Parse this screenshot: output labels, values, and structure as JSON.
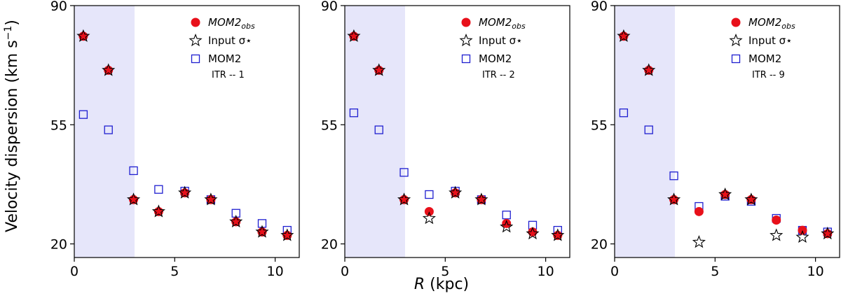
{
  "chart_data": [
    {
      "type": "scatter",
      "panel": "left",
      "title": "",
      "xlabel": "",
      "ylabel": "Velocity dispersion (km s⁻¹)",
      "xlim": [
        0,
        11.2
      ],
      "ylim": [
        16,
        90
      ],
      "xticks": [
        0,
        5,
        10
      ],
      "yticks": [
        20,
        55,
        90
      ],
      "shaded_region": {
        "x_from": 0,
        "x_to": 3.0,
        "color": "#e6e6fa"
      },
      "annotation": "ITR -- 1",
      "legend_position": "top-right",
      "series": [
        {
          "name": "MOM2_obs",
          "marker": "circle",
          "color": "#e8101a",
          "x": [
            0.45,
            1.7,
            2.95,
            4.2,
            5.5,
            6.8,
            8.05,
            9.35,
            10.6
          ],
          "y": [
            81,
            71,
            33,
            29.5,
            35,
            33,
            26.5,
            23.5,
            22.5
          ]
        },
        {
          "name": "Input σ*",
          "marker": "star",
          "color": "#000000",
          "x": [
            0.45,
            1.7,
            2.95,
            4.2,
            5.5,
            6.8,
            8.05,
            9.35,
            10.6
          ],
          "y": [
            81,
            71,
            33,
            29.5,
            35,
            33,
            26.5,
            23.5,
            22.5
          ]
        },
        {
          "name": "MOM2",
          "marker": "square",
          "color": "#1f1fd0",
          "x": [
            0.45,
            1.7,
            2.95,
            4.2,
            5.5,
            6.8,
            8.05,
            9.35,
            10.6
          ],
          "y": [
            58,
            53.5,
            41.5,
            36,
            35.5,
            33,
            29,
            26,
            24
          ]
        }
      ]
    },
    {
      "type": "scatter",
      "panel": "middle",
      "title": "",
      "xlabel": "R (kpc)",
      "ylabel": "",
      "xlim": [
        0,
        11.2
      ],
      "ylim": [
        16,
        90
      ],
      "xticks": [
        0,
        5,
        10
      ],
      "yticks": [
        20,
        55,
        90
      ],
      "shaded_region": {
        "x_from": 0,
        "x_to": 3.0,
        "color": "#e6e6fa"
      },
      "annotation": "ITR -- 2",
      "legend_position": "top-right",
      "series": [
        {
          "name": "MOM2_obs",
          "marker": "circle",
          "color": "#e8101a",
          "x": [
            0.45,
            1.7,
            2.95,
            4.2,
            5.5,
            6.8,
            8.05,
            9.35,
            10.6
          ],
          "y": [
            81,
            71,
            33,
            29.5,
            35,
            33,
            26,
            23.5,
            22.5
          ]
        },
        {
          "name": "Input σ*",
          "marker": "star",
          "color": "#000000",
          "x": [
            0.45,
            1.7,
            2.95,
            4.2,
            5.5,
            6.8,
            8.05,
            9.35,
            10.6
          ],
          "y": [
            81,
            71,
            33,
            27.5,
            35,
            33,
            25,
            23,
            22.5
          ]
        },
        {
          "name": "MOM2",
          "marker": "square",
          "color": "#1f1fd0",
          "x": [
            0.45,
            1.7,
            2.95,
            4.2,
            5.5,
            6.8,
            8.05,
            9.35,
            10.6
          ],
          "y": [
            58.5,
            53.5,
            41,
            34.5,
            35.5,
            33,
            28.5,
            25.5,
            24
          ]
        }
      ]
    },
    {
      "type": "scatter",
      "panel": "right",
      "title": "",
      "xlabel": "",
      "ylabel": "",
      "xlim": [
        0,
        11.2
      ],
      "ylim": [
        16,
        90
      ],
      "xticks": [
        0,
        5,
        10
      ],
      "yticks": [
        20,
        55,
        90
      ],
      "shaded_region": {
        "x_from": 0,
        "x_to": 3.0,
        "color": "#e6e6fa"
      },
      "annotation": "ITR -- 9",
      "legend_position": "top-right",
      "series": [
        {
          "name": "MOM2_obs",
          "marker": "circle",
          "color": "#e8101a",
          "x": [
            0.45,
            1.7,
            2.95,
            4.2,
            5.5,
            6.8,
            8.05,
            9.35,
            10.6
          ],
          "y": [
            81,
            71,
            33,
            29.5,
            34.5,
            33,
            27,
            24,
            23
          ]
        },
        {
          "name": "Input σ*",
          "marker": "star",
          "color": "#000000",
          "x": [
            0.45,
            1.7,
            2.95,
            4.2,
            5.5,
            6.8,
            8.05,
            9.35,
            10.6
          ],
          "y": [
            81,
            71,
            33,
            20.5,
            34.5,
            33,
            22.5,
            22,
            23
          ]
        },
        {
          "name": "MOM2",
          "marker": "square",
          "color": "#1f1fd0",
          "x": [
            0.45,
            1.7,
            2.95,
            4.2,
            5.5,
            6.8,
            8.05,
            9.35,
            10.6
          ],
          "y": [
            58.5,
            53.5,
            40,
            31,
            34,
            32.5,
            27.5,
            24,
            23.5
          ]
        }
      ]
    }
  ],
  "legend": {
    "labels": {
      "obs_main": "MOM2",
      "obs_sub": "obs",
      "input": "Input σ⋆",
      "mom2": "MOM2"
    }
  },
  "axis": {
    "ylabel_text": "Velocity dispersion (km s",
    "ylabel_sup": "−1",
    "ylabel_close": ")",
    "xlabel_italic": "R",
    "xlabel_rest": " (kpc)"
  }
}
